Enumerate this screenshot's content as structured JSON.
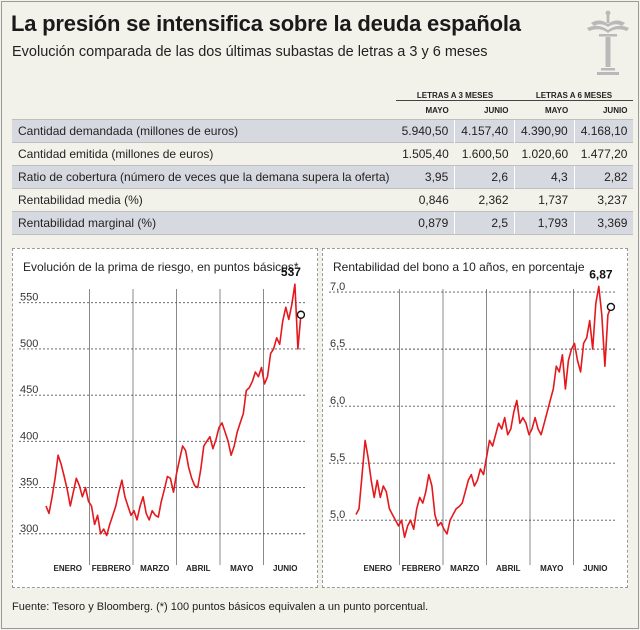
{
  "header": {
    "title": "La presión se intensifica sobre la deuda española",
    "subtitle": "Evolución comparada de las dos últimas subastas de letras a 3 y 6 meses"
  },
  "table": {
    "group_headers": [
      "LETRAS A 3 MESES",
      "LETRAS A 6 MESES"
    ],
    "month_headers": [
      "MAYO",
      "JUNIO",
      "MAYO",
      "JUNIO"
    ],
    "rows": [
      {
        "label": "Cantidad demandada (millones de euros)",
        "values": [
          "5.940,50",
          "4.157,40",
          "4.390,90",
          "4.168,10"
        ],
        "shaded": true
      },
      {
        "label": "Cantidad emitida (millones de euros)",
        "values": [
          "1.505,40",
          "1.600,50",
          "1.020,60",
          "1.477,20"
        ],
        "shaded": false
      },
      {
        "label": "Ratio de cobertura (número de veces que la demana supera la oferta)",
        "values": [
          "3,95",
          "2,6",
          "4,3",
          "2,82"
        ],
        "shaded": true
      },
      {
        "label": "Rentabilidad media (%)",
        "values": [
          "0,846",
          "2,362",
          "1,737",
          "3,237"
        ],
        "shaded": false
      },
      {
        "label": "Rentabilidad marginal (%)",
        "values": [
          "0,879",
          "2,5",
          "1,793",
          "3,369"
        ],
        "shaded": true
      }
    ]
  },
  "source": "Fuente: Tesoro y Bloomberg. (*) 100 puntos básicos equivalen a un punto porcentual.",
  "colors": {
    "line": "#e3191e",
    "shade": "#d6d9e0",
    "grid": "#555555"
  },
  "chart_data": [
    {
      "type": "line",
      "title": "Evolución de la prima de riesgo, en puntos básicos*",
      "xlabel": "",
      "ylabel": "",
      "categories": [
        "ENERO",
        "FEBRERO",
        "MARZO",
        "ABRIL",
        "MAYO",
        "JUNIO"
      ],
      "yticks": [
        "300",
        "350",
        "400",
        "450",
        "500",
        "550"
      ],
      "ylim": [
        290,
        580
      ],
      "last_label": "537",
      "grid": "dotted horizontal, solid month separators",
      "series": [
        {
          "x": [
            0,
            2,
            4,
            6,
            8,
            10,
            12,
            14,
            16,
            18,
            20,
            22,
            24,
            26,
            28,
            30,
            32,
            34,
            36,
            38,
            40,
            42,
            44,
            46,
            48,
            50,
            52,
            54,
            56,
            58,
            60,
            62,
            64,
            66,
            68,
            70,
            72,
            74,
            76,
            78,
            80,
            82,
            84,
            86,
            88,
            90,
            92,
            94,
            96,
            98,
            100,
            102,
            104,
            106,
            108,
            110,
            112,
            114,
            116,
            118,
            120,
            122,
            124,
            126,
            128,
            130,
            132,
            134,
            136,
            138,
            140,
            142,
            144,
            146,
            148,
            150,
            152,
            154,
            156,
            158,
            160,
            162,
            164,
            166,
            168
          ],
          "values": [
            330,
            322,
            340,
            360,
            385,
            375,
            362,
            348,
            330,
            345,
            360,
            352,
            340,
            350,
            335,
            330,
            310,
            320,
            300,
            305,
            298,
            310,
            320,
            330,
            345,
            358,
            340,
            330,
            320,
            325,
            315,
            330,
            340,
            322,
            315,
            325,
            320,
            318,
            335,
            348,
            362,
            360,
            345,
            365,
            380,
            395,
            390,
            372,
            360,
            352,
            350,
            370,
            395,
            400,
            405,
            392,
            402,
            415,
            420,
            410,
            400,
            385,
            395,
            410,
            420,
            430,
            455,
            458,
            465,
            475,
            470,
            480,
            462,
            470,
            495,
            500,
            512,
            505,
            530,
            545,
            532,
            548,
            570,
            500,
            537
          ]
        }
      ]
    },
    {
      "type": "line",
      "title": "Rentabilidad del bono a 10 años, en porcentaje",
      "xlabel": "",
      "ylabel": "",
      "categories": [
        "ENERO",
        "FEBRERO",
        "MARZO",
        "ABRIL",
        "MAYO",
        "JUNIO"
      ],
      "yticks": [
        "5,0",
        "5,5",
        "6,0",
        "6,5",
        "7,0"
      ],
      "ylim": [
        4.8,
        7.15
      ],
      "last_label": "6,87",
      "grid": "dotted horizontal, solid month separators",
      "series": [
        {
          "x": [
            0,
            2,
            4,
            6,
            8,
            10,
            12,
            14,
            16,
            18,
            20,
            22,
            24,
            26,
            28,
            30,
            32,
            34,
            36,
            38,
            40,
            42,
            44,
            46,
            48,
            50,
            52,
            54,
            56,
            58,
            60,
            62,
            64,
            66,
            68,
            70,
            72,
            74,
            76,
            78,
            80,
            82,
            84,
            86,
            88,
            90,
            92,
            94,
            96,
            98,
            100,
            102,
            104,
            106,
            108,
            110,
            112,
            114,
            116,
            118,
            120,
            122,
            124,
            126,
            128,
            130,
            132,
            134,
            136,
            138,
            140,
            142,
            144,
            146,
            148,
            150,
            152,
            154,
            156,
            158,
            160,
            162,
            164,
            166,
            168
          ],
          "values": [
            5.05,
            5.1,
            5.4,
            5.7,
            5.55,
            5.35,
            5.2,
            5.35,
            5.2,
            5.3,
            5.25,
            5.1,
            5.05,
            5.0,
            4.95,
            5.0,
            4.85,
            4.95,
            5.0,
            4.92,
            5.1,
            5.2,
            5.15,
            5.25,
            5.4,
            5.3,
            5.05,
            4.95,
            4.98,
            4.92,
            4.88,
            5.0,
            5.05,
            5.1,
            5.12,
            5.15,
            5.25,
            5.35,
            5.4,
            5.3,
            5.35,
            5.45,
            5.4,
            5.55,
            5.7,
            5.65,
            5.75,
            5.85,
            5.8,
            5.9,
            5.75,
            5.8,
            5.95,
            6.05,
            5.85,
            5.9,
            5.85,
            5.75,
            5.8,
            5.9,
            5.8,
            5.75,
            5.85,
            5.95,
            6.05,
            6.15,
            6.35,
            6.3,
            6.45,
            6.15,
            6.4,
            6.5,
            6.55,
            6.4,
            6.3,
            6.55,
            6.6,
            6.75,
            6.5,
            6.9,
            7.05,
            6.8,
            6.35,
            6.8,
            6.87
          ]
        }
      ]
    }
  ]
}
